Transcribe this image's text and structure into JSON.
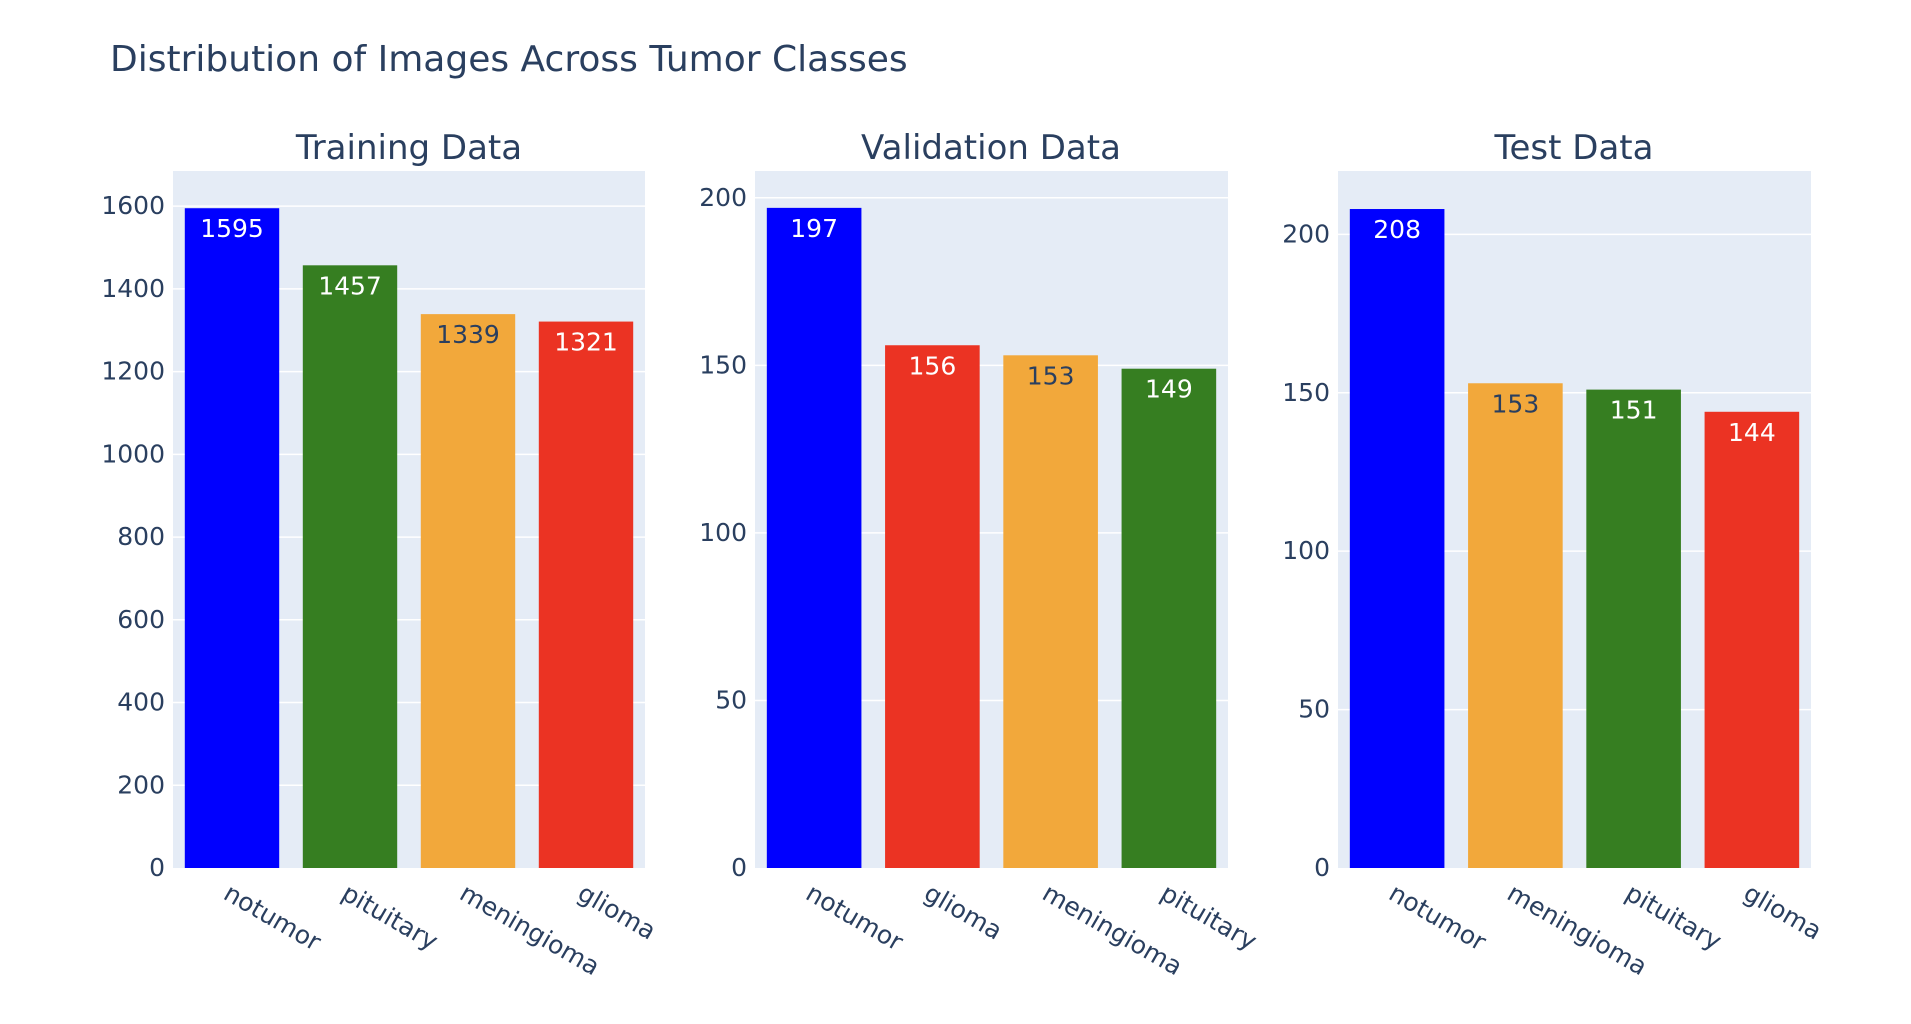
{
  "figure": {
    "title": "Distribution of Images Across Tumor Classes",
    "plot_bg": "#e5ecf6",
    "grid_color": "#ffffff",
    "text_color": "#2a3f5f"
  },
  "class_colors": {
    "notumor": "#0000ff",
    "pituitary": "#367e21",
    "meningioma": "#f2a83b",
    "glioma": "#eb3323"
  },
  "chart_data": [
    {
      "type": "bar",
      "title": "Training Data",
      "categories": [
        "notumor",
        "pituitary",
        "meningioma",
        "glioma"
      ],
      "values": [
        1595,
        1457,
        1339,
        1321
      ],
      "value_labels": [
        "1595",
        "1457",
        "1339",
        "1321"
      ],
      "ylim": [
        0,
        1685
      ],
      "yticks": [
        0,
        200,
        400,
        600,
        800,
        1000,
        1200,
        1400,
        1600
      ],
      "ytick_labels": [
        "0",
        "200",
        "400",
        "600",
        "800",
        "1000",
        "1200",
        "1400",
        "1600"
      ],
      "xlabel": "",
      "ylabel": "",
      "grid": true,
      "legend": false
    },
    {
      "type": "bar",
      "title": "Validation Data",
      "categories": [
        "notumor",
        "glioma",
        "meningioma",
        "pituitary"
      ],
      "values": [
        197,
        156,
        153,
        149
      ],
      "value_labels": [
        "197",
        "156",
        "153",
        "149"
      ],
      "ylim": [
        0,
        208
      ],
      "yticks": [
        0,
        50,
        100,
        150,
        200
      ],
      "ytick_labels": [
        "0",
        "50",
        "100",
        "150",
        "200"
      ],
      "xlabel": "",
      "ylabel": "",
      "grid": true,
      "legend": false
    },
    {
      "type": "bar",
      "title": "Test Data",
      "categories": [
        "notumor",
        "meningioma",
        "pituitary",
        "glioma"
      ],
      "values": [
        208,
        153,
        151,
        144
      ],
      "value_labels": [
        "208",
        "153",
        "151",
        "144"
      ],
      "ylim": [
        0,
        220
      ],
      "yticks": [
        0,
        50,
        100,
        150,
        200
      ],
      "ytick_labels": [
        "0",
        "50",
        "100",
        "150",
        "200"
      ],
      "xlabel": "",
      "ylabel": "",
      "grid": true,
      "legend": false
    }
  ]
}
